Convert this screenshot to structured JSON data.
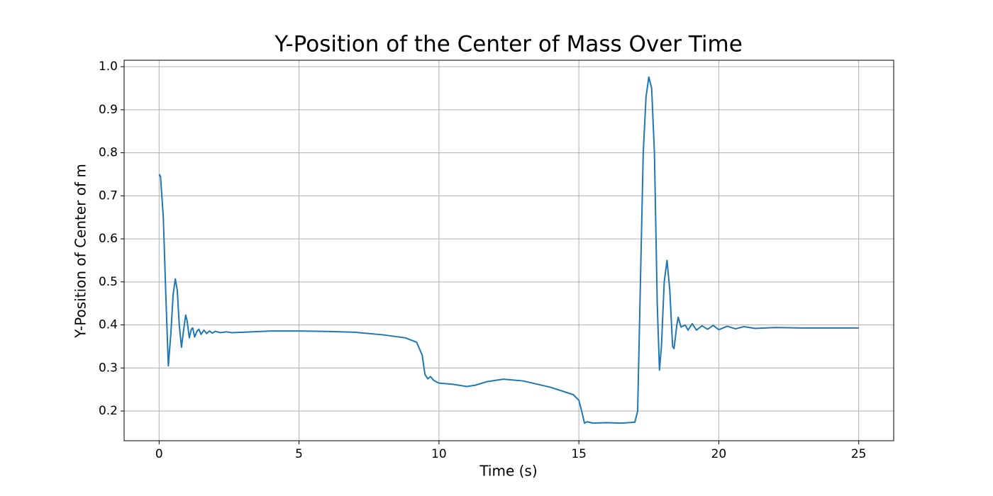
{
  "chart_data": {
    "type": "line",
    "title": "Y-Position of the Center of Mass Over Time",
    "xlabel": "Time (s)",
    "ylabel": "Y-Position of Center of  m",
    "x": [
      0,
      0.05,
      0.15,
      0.25,
      0.33,
      0.42,
      0.5,
      0.58,
      0.65,
      0.72,
      0.8,
      0.88,
      0.95,
      1.0,
      1.08,
      1.15,
      1.2,
      1.27,
      1.35,
      1.42,
      1.5,
      1.6,
      1.7,
      1.8,
      1.9,
      2.0,
      2.2,
      2.4,
      2.6,
      3,
      4,
      5,
      6,
      7,
      8,
      8.8,
      9.2,
      9.4,
      9.5,
      9.6,
      9.7,
      9.8,
      9.9,
      10,
      10.5,
      11,
      11.3,
      11.7,
      12.3,
      13,
      14,
      14.8,
      15.0,
      15.1,
      15.2,
      15.3,
      15.5,
      16,
      16.5,
      17.0,
      17.1,
      17.2,
      17.3,
      17.4,
      17.5,
      17.6,
      17.7,
      17.8,
      17.88,
      17.95,
      18.05,
      18.15,
      18.25,
      18.35,
      18.4,
      18.5,
      18.55,
      18.65,
      18.8,
      18.9,
      19.05,
      19.2,
      19.4,
      19.6,
      19.8,
      20.0,
      20.3,
      20.6,
      20.9,
      21.3,
      22,
      23,
      24,
      25
    ],
    "values": [
      0.75,
      0.745,
      0.65,
      0.45,
      0.305,
      0.38,
      0.47,
      0.507,
      0.48,
      0.4,
      0.348,
      0.39,
      0.423,
      0.41,
      0.37,
      0.39,
      0.393,
      0.372,
      0.385,
      0.39,
      0.378,
      0.388,
      0.38,
      0.386,
      0.381,
      0.385,
      0.382,
      0.384,
      0.382,
      0.383,
      0.386,
      0.386,
      0.385,
      0.383,
      0.377,
      0.37,
      0.36,
      0.33,
      0.285,
      0.275,
      0.28,
      0.272,
      0.268,
      0.265,
      0.262,
      0.257,
      0.26,
      0.268,
      0.274,
      0.27,
      0.255,
      0.238,
      0.225,
      0.2,
      0.172,
      0.175,
      0.172,
      0.173,
      0.172,
      0.174,
      0.2,
      0.5,
      0.8,
      0.93,
      0.976,
      0.95,
      0.8,
      0.45,
      0.295,
      0.35,
      0.5,
      0.55,
      0.48,
      0.35,
      0.345,
      0.4,
      0.418,
      0.395,
      0.4,
      0.388,
      0.403,
      0.388,
      0.398,
      0.39,
      0.399,
      0.389,
      0.397,
      0.391,
      0.396,
      0.392,
      0.394,
      0.393,
      0.393,
      0.393
    ],
    "color": "#1f77b4",
    "xlim": [
      -1.25,
      26.25
    ],
    "ylim": [
      0.131,
      1.015
    ],
    "xticks": [
      0,
      5,
      10,
      15,
      20,
      25
    ],
    "yticks": [
      0.2,
      0.3,
      0.4,
      0.5,
      0.6,
      0.7,
      0.8,
      0.9,
      {
        "value": 1,
        "label": "1.0"
      }
    ],
    "grid": true
  }
}
